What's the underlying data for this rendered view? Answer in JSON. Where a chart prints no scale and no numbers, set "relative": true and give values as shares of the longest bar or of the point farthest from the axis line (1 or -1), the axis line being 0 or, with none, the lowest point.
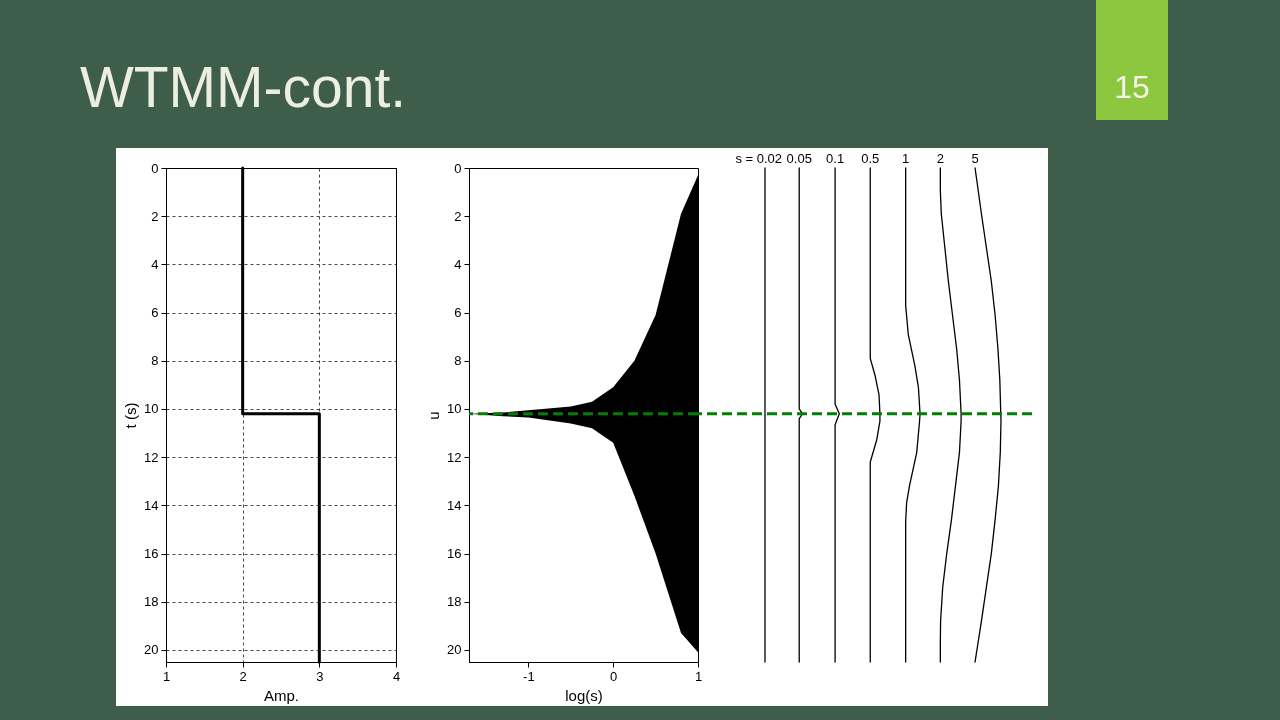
{
  "chart_data": [
    {
      "type": "line",
      "title": "WTMM-cont.",
      "annotations": [
        "15"
      ],
      "xlabel": "Amp.",
      "ylabel": "t (s)",
      "x": [
        2,
        2,
        3,
        3
      ],
      "series": [
        {
          "color": "#000000",
          "values": [
            0,
            10.2,
            10.2,
            20.5
          ]
        }
      ],
      "xlim": [
        1,
        4
      ],
      "xticks": [
        1,
        2,
        3,
        4
      ],
      "ylim": [
        20.5,
        0
      ],
      "yticks": [
        0,
        2,
        4,
        6,
        8,
        10,
        12,
        14,
        16,
        18,
        20
      ],
      "grid": true
    },
    {
      "type": "line",
      "xlabel": "log(s)",
      "ylabel": "u",
      "x": [
        -1.7,
        -1.3,
        -1,
        -0.5,
        -0.25,
        0,
        0.25,
        0.5,
        0.8,
        1
      ],
      "series": [
        {
          "color": "#000000",
          "values": [
            null,
            null,
            null,
            null,
            null,
            null,
            null,
            null,
            null,
            null
          ],
          "lower": [
            10.2,
            10.15,
            10.05,
            9.9,
            9.7,
            9.1,
            8.0,
            6.1,
            1.9,
            0.3
          ],
          "upper": [
            10.2,
            10.3,
            10.35,
            10.6,
            10.8,
            11.4,
            13.6,
            16.0,
            19.3,
            20.1
          ]
        }
      ],
      "ref_lines": [
        {
          "axis": "y",
          "value": 10.2,
          "color": "#008000",
          "line_style": "dashed"
        }
      ],
      "xlim": [
        -1.7,
        1
      ],
      "xticks": [
        -1,
        0,
        1
      ],
      "ylim": [
        20.5,
        0
      ],
      "yticks": [
        0,
        2,
        4,
        6,
        8,
        10,
        12,
        14,
        16,
        18,
        20
      ]
    },
    {
      "type": "line",
      "relative": true,
      "orientation": "horizontal",
      "ylim": [
        20.5,
        0
      ],
      "ref_lines": [
        {
          "axis": "y",
          "value": 10.2,
          "color": "#008000",
          "line_style": "dashed"
        }
      ],
      "series": [
        {
          "name": "s = 0.02",
          "color": "#000000",
          "x": [
            0,
            20.5
          ],
          "values": [
            0,
            0
          ]
        },
        {
          "name": "0.05",
          "color": "#000000",
          "x": [
            0,
            10.0,
            10.2,
            10.4,
            20.5
          ],
          "values": [
            0.145,
            0.145,
            0.159,
            0.145,
            0.145
          ]
        },
        {
          "name": "0.1",
          "color": "#000000",
          "x": [
            0,
            9.8,
            10.2,
            10.65,
            20.5
          ],
          "values": [
            0.297,
            0.297,
            0.315,
            0.297,
            0.297
          ]
        },
        {
          "name": "0.5",
          "color": "#000000",
          "x": [
            0,
            7.9,
            8.6,
            9.4,
            10.2,
            10.5,
            11.3,
            12.2,
            20.5
          ],
          "values": [
            0.446,
            0.446,
            0.466,
            0.483,
            0.487,
            0.487,
            0.473,
            0.446,
            0.446
          ]
        },
        {
          "name": "1",
          "color": "#000000",
          "x": [
            0,
            5.7,
            6.9,
            8.2,
            9.1,
            10.2,
            10.5,
            11.8,
            13.2,
            13.9,
            14.7,
            20.5
          ],
          "values": [
            0.596,
            0.596,
            0.607,
            0.635,
            0.65,
            0.657,
            0.655,
            0.643,
            0.612,
            0.6,
            0.596,
            0.596
          ]
        },
        {
          "name": "2",
          "color": "#000000",
          "x": [
            0,
            0.95,
            1.9,
            4.7,
            7.5,
            8.8,
            10.2,
            10.5,
            11.8,
            13.2,
            14.6,
            16,
            17.4,
            18.8,
            19.6,
            20.5
          ],
          "values": [
            0.743,
            0.743,
            0.747,
            0.777,
            0.812,
            0.824,
            0.831,
            0.831,
            0.824,
            0.807,
            0.79,
            0.77,
            0.753,
            0.744,
            0.743,
            0.743
          ]
        },
        {
          "name": "5",
          "color": "#000000",
          "x": [
            0,
            0.55,
            1.9,
            3.3,
            4.7,
            6.1,
            7.5,
            8.8,
            10.2,
            10.5,
            11.8,
            13.2,
            14.6,
            16,
            17.4,
            18.8,
            20.5
          ],
          "values": [
            0.89,
            0.898,
            0.917,
            0.938,
            0.959,
            0.975,
            0.987,
            0.995,
            0.999,
            1,
            0.997,
            0.989,
            0.975,
            0.959,
            0.938,
            0.917,
            0.89
          ]
        }
      ]
    }
  ]
}
